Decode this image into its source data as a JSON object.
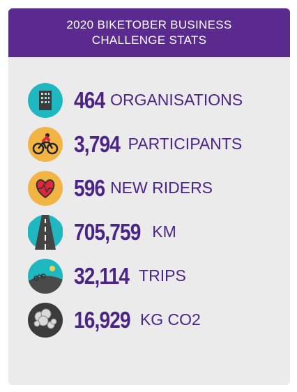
{
  "header": {
    "title": "2020 BIKETOBER BUSINESS CHALLENGE STATS"
  },
  "stats": [
    {
      "number": "464",
      "label": "ORGANISATIONS"
    },
    {
      "number": "3,794",
      "label": "PARTICIPANTS"
    },
    {
      "number": "596",
      "label": "NEW RIDERS"
    },
    {
      "number": "705,759",
      "label": "KM"
    },
    {
      "number": "32,114",
      "label": "TRIPS"
    },
    {
      "number": "16,929",
      "label": "KG CO2"
    }
  ]
}
